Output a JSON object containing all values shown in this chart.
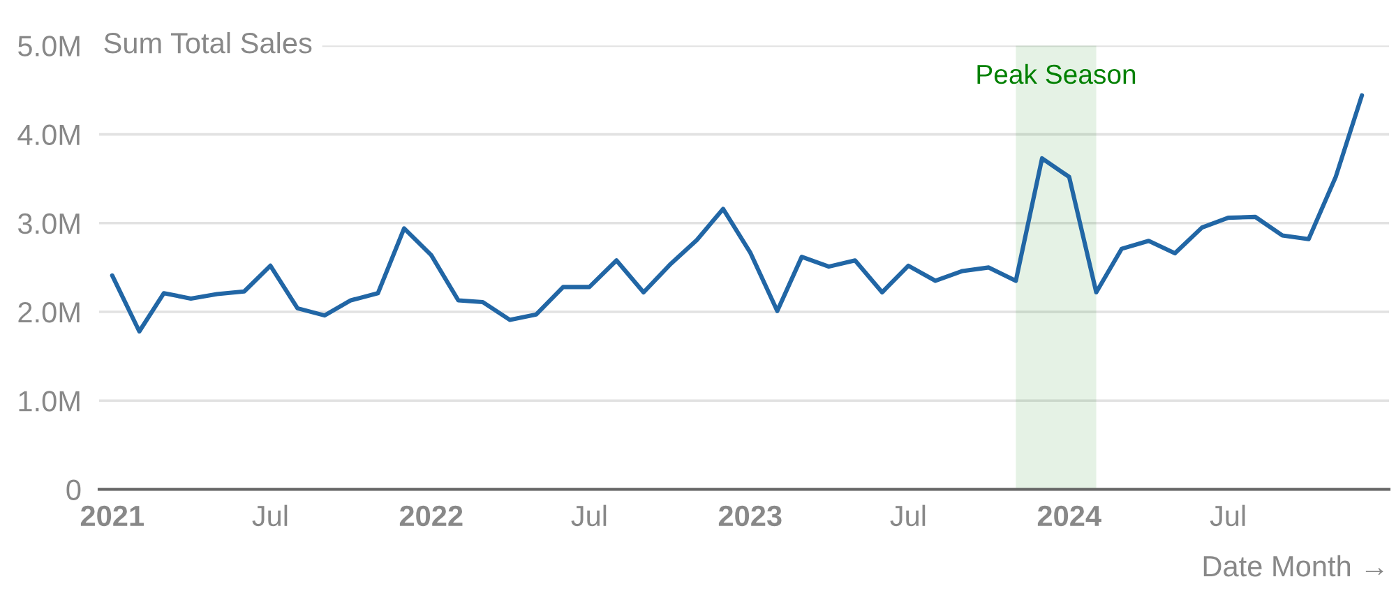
{
  "chart_data": {
    "type": "line",
    "ylabel": "Sum Total Sales",
    "xlabel": "Date Month →",
    "x": [
      "2021-01",
      "2021-02",
      "2021-03",
      "2021-04",
      "2021-05",
      "2021-06",
      "2021-07",
      "2021-08",
      "2021-09",
      "2021-10",
      "2021-11",
      "2021-12",
      "2022-01",
      "2022-02",
      "2022-03",
      "2022-04",
      "2022-05",
      "2022-06",
      "2022-07",
      "2022-08",
      "2022-09",
      "2022-10",
      "2022-11",
      "2022-12",
      "2023-01",
      "2023-02",
      "2023-03",
      "2023-04",
      "2023-05",
      "2023-06",
      "2023-07",
      "2023-08",
      "2023-09",
      "2023-10",
      "2023-11",
      "2023-12",
      "2024-01",
      "2024-02",
      "2024-03",
      "2024-04",
      "2024-05",
      "2024-06",
      "2024-07",
      "2024-08",
      "2024-09",
      "2024-10",
      "2024-11",
      "2024-12"
    ],
    "values": [
      2410000,
      1780000,
      2210000,
      2150000,
      2200000,
      2230000,
      2520000,
      2040000,
      1960000,
      2130000,
      2210000,
      2940000,
      2640000,
      2130000,
      2110000,
      1910000,
      1970000,
      2280000,
      2280000,
      2580000,
      2220000,
      2530000,
      2810000,
      3160000,
      2670000,
      2010000,
      2620000,
      2510000,
      2580000,
      2220000,
      2520000,
      2350000,
      2460000,
      2500000,
      2350000,
      3730000,
      3520000,
      2220000,
      2710000,
      2800000,
      2660000,
      2950000,
      3060000,
      3070000,
      2860000,
      2820000,
      3520000,
      4440000
    ],
    "color": "#2166a5",
    "xlim": [
      "2020-12-17",
      "2025-01-01"
    ],
    "xticks": [
      {
        "value": "2021-01",
        "label": "2021"
      },
      {
        "value": "2021-07",
        "label": "Jul"
      },
      {
        "value": "2022-01",
        "label": "2022"
      },
      {
        "value": "2022-07",
        "label": "Jul"
      },
      {
        "value": "2023-01",
        "label": "2023"
      },
      {
        "value": "2023-07",
        "label": "Jul"
      },
      {
        "value": "2024-01",
        "label": "2024"
      },
      {
        "value": "2024-07",
        "label": "Jul"
      }
    ],
    "ylim": [
      0,
      5000000
    ],
    "yticks": [
      0,
      {
        "value": 1000000,
        "label": "1.0M"
      },
      {
        "value": 2000000,
        "label": "2.0M"
      },
      {
        "value": 3000000,
        "label": "3.0M"
      },
      {
        "value": 4000000,
        "label": "4.0M"
      },
      {
        "value": 5000000,
        "label": "5.0M"
      }
    ],
    "grid": "y",
    "bands": [
      {
        "axis": "x",
        "from": "2023-11",
        "to": "2024-02",
        "label": "Peak Season",
        "color": "#008000"
      }
    ]
  }
}
